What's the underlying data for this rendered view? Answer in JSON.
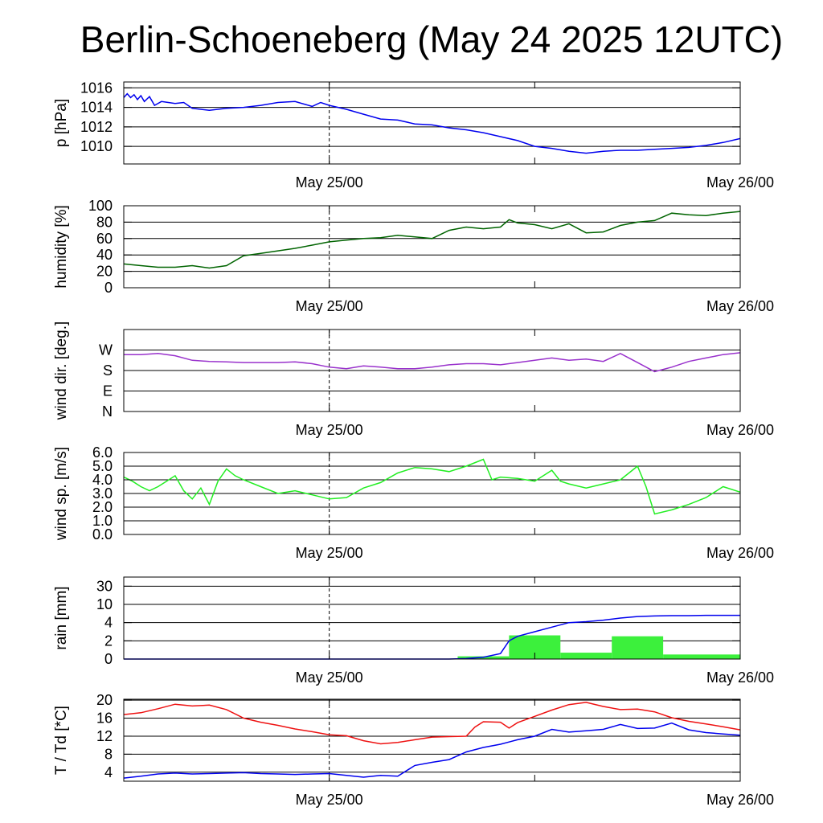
{
  "title": "Berlin-Schoeneberg (May 24 2025 12UTC)",
  "x_ticks": [
    "May 25/00",
    "May 26/00"
  ],
  "chart_data": [
    {
      "type": "line",
      "ylabel": "p [hPa]",
      "yticks": [
        "1010",
        "1012",
        "1014",
        "1016"
      ],
      "ylim": [
        1008.2,
        1016.6
      ],
      "xlim": [
        0,
        36
      ],
      "series": [
        {
          "color": "#0000ee",
          "x": [
            0,
            0.2,
            0.4,
            0.6,
            0.8,
            1.0,
            1.2,
            1.5,
            1.8,
            2.2,
            2.6,
            3,
            3.5,
            4,
            5,
            6,
            7,
            8,
            9,
            10,
            11,
            11.5,
            12,
            13,
            14,
            15,
            16,
            17,
            18,
            19,
            20,
            21,
            22,
            23,
            24,
            25,
            26,
            27,
            28,
            29,
            30,
            31,
            32,
            33,
            34,
            35,
            36
          ],
          "y": [
            1015.0,
            1015.4,
            1015.0,
            1015.3,
            1014.8,
            1015.2,
            1014.6,
            1015.1,
            1014.2,
            1014.6,
            1014.5,
            1014.4,
            1014.5,
            1013.9,
            1013.7,
            1013.9,
            1014.0,
            1014.2,
            1014.5,
            1014.6,
            1014.1,
            1014.5,
            1014.2,
            1013.8,
            1013.3,
            1012.8,
            1012.7,
            1012.3,
            1012.2,
            1011.9,
            1011.7,
            1011.4,
            1011.0,
            1010.6,
            1010.0,
            1009.8,
            1009.5,
            1009.3,
            1009.5,
            1009.6,
            1009.6,
            1009.7,
            1009.8,
            1009.9,
            1010.1,
            1010.4,
            1010.8
          ]
        }
      ]
    },
    {
      "type": "line",
      "ylabel": "humidity [%]",
      "yticks": [
        "0",
        "20",
        "40",
        "60",
        "80",
        "100"
      ],
      "ylim": [
        0,
        100
      ],
      "xlim": [
        0,
        36
      ],
      "series": [
        {
          "color": "#006400",
          "x": [
            0,
            1,
            2,
            3,
            4,
            5,
            6,
            7,
            8,
            9,
            10,
            11,
            12,
            13,
            14,
            15,
            16,
            17,
            18,
            19,
            20,
            21,
            22,
            22.5,
            23,
            24,
            25,
            26,
            27,
            28,
            29,
            30,
            31,
            32,
            33,
            34,
            35,
            36
          ],
          "y": [
            29,
            27,
            25,
            25,
            27,
            24,
            27,
            39,
            42,
            45,
            48,
            52,
            56,
            58,
            60,
            61,
            64,
            62,
            60,
            70,
            74,
            72,
            74,
            83,
            79,
            77,
            72,
            78,
            67,
            68,
            76,
            80,
            82,
            91,
            89,
            88,
            91,
            93
          ]
        }
      ]
    },
    {
      "type": "line",
      "ylabel": "wind dir. [deg.]",
      "yticks": [
        "N",
        "E",
        "S",
        "W"
      ],
      "ylim": [
        0,
        360
      ],
      "xlim": [
        0,
        36
      ],
      "series": [
        {
          "color": "#9932cc",
          "x": [
            0,
            1,
            2,
            3,
            4,
            5,
            6,
            7,
            8,
            9,
            10,
            11,
            12,
            13,
            14,
            15,
            16,
            17,
            18,
            19,
            20,
            21,
            22,
            23,
            24,
            25,
            26,
            27,
            28,
            29,
            30,
            31,
            32,
            33,
            34,
            35,
            36
          ],
          "y": [
            250,
            250,
            255,
            245,
            225,
            220,
            218,
            215,
            215,
            215,
            218,
            210,
            195,
            188,
            200,
            195,
            188,
            188,
            195,
            205,
            210,
            210,
            205,
            215,
            225,
            235,
            225,
            230,
            220,
            255,
            215,
            175,
            195,
            220,
            235,
            250,
            258
          ]
        }
      ]
    },
    {
      "type": "line",
      "ylabel": "wind sp. [m/s]",
      "yticks": [
        "0.0",
        "1.0",
        "2.0",
        "3.0",
        "4.0",
        "5.0",
        "6.0"
      ],
      "ylim": [
        0,
        6
      ],
      "xlim": [
        0,
        36
      ],
      "series": [
        {
          "color": "#22ee22",
          "x": [
            0,
            0.5,
            1,
            1.5,
            2,
            2.5,
            3,
            3.5,
            4,
            4.5,
            5,
            5.5,
            6,
            6.5,
            7,
            8,
            9,
            10,
            11,
            12,
            13,
            14,
            15,
            16,
            17,
            18,
            19,
            20,
            21,
            21.5,
            22,
            23,
            24,
            25,
            25.5,
            26,
            27,
            28,
            29,
            30,
            30.5,
            31,
            32,
            33,
            34,
            35,
            36
          ],
          "y": [
            4.2,
            3.9,
            3.5,
            3.2,
            3.5,
            3.9,
            4.3,
            3.2,
            2.6,
            3.4,
            2.2,
            3.9,
            4.8,
            4.3,
            4.0,
            3.5,
            3.0,
            3.2,
            2.9,
            2.6,
            2.7,
            3.4,
            3.8,
            4.5,
            4.9,
            4.8,
            4.6,
            5.0,
            5.5,
            4.0,
            4.2,
            4.1,
            3.9,
            4.7,
            3.9,
            3.7,
            3.4,
            3.7,
            4.0,
            5.0,
            3.5,
            1.5,
            1.8,
            2.2,
            2.7,
            3.5,
            3.1
          ]
        }
      ]
    },
    {
      "type": "bar+line",
      "ylabel": "rain [mm]",
      "yticks": [
        "0",
        "2",
        "4",
        "10",
        "30"
      ],
      "ytick_values": [
        0,
        2,
        4,
        10,
        30
      ],
      "xlim": [
        0,
        36
      ],
      "bar_color": "#3cf03c",
      "bars": [
        {
          "x0": 19.5,
          "x1": 22.5,
          "value": 0.3
        },
        {
          "x0": 22.5,
          "x1": 25.5,
          "value": 2.6
        },
        {
          "x0": 25.5,
          "x1": 28.5,
          "value": 0.7
        },
        {
          "x0": 28.5,
          "x1": 31.5,
          "value": 2.5
        },
        {
          "x0": 31.5,
          "x1": 36,
          "value": 0.5
        }
      ],
      "series": [
        {
          "color": "#0000ee",
          "x": [
            0,
            19,
            20,
            21,
            22,
            22.5,
            23,
            24,
            25,
            26,
            27,
            28,
            29,
            30,
            31,
            32,
            33,
            34,
            35,
            36
          ],
          "y": [
            0,
            0,
            0.05,
            0.2,
            0.6,
            2.0,
            2.5,
            3.0,
            3.5,
            4.0,
            4.3,
            4.8,
            5.5,
            6.0,
            6.2,
            6.3,
            6.3,
            6.4,
            6.4,
            6.4
          ]
        }
      ]
    },
    {
      "type": "line",
      "ylabel": "T / Td [*C]",
      "yticks": [
        "4",
        "8",
        "12",
        "16",
        "20"
      ],
      "ylim": [
        2.0,
        20.2
      ],
      "xlim": [
        0,
        36
      ],
      "series": [
        {
          "color": "#ee1111",
          "x": [
            0,
            1,
            2,
            3,
            4,
            5,
            6,
            7,
            8,
            9,
            10,
            11,
            12,
            13,
            14,
            15,
            16,
            17,
            18,
            19,
            20,
            20.5,
            21,
            22,
            22.5,
            23,
            24,
            25,
            26,
            27,
            28,
            29,
            30,
            31,
            32,
            33,
            34,
            35,
            36
          ],
          "y": [
            16.8,
            17.2,
            18.1,
            19.1,
            18.7,
            18.9,
            17.9,
            16.0,
            15.1,
            14.4,
            13.6,
            13.0,
            12.3,
            12.1,
            11.0,
            10.3,
            10.6,
            11.2,
            11.8,
            11.9,
            12.0,
            14.0,
            15.2,
            15.1,
            13.8,
            15.0,
            16.4,
            17.8,
            19.0,
            19.5,
            18.6,
            17.9,
            18.0,
            17.4,
            16.1,
            15.3,
            14.7,
            14.1,
            13.4
          ]
        },
        {
          "color": "#0000ee",
          "x": [
            0,
            1,
            2,
            3,
            4,
            5,
            6,
            7,
            8,
            9,
            10,
            11,
            12,
            13,
            14,
            15,
            16,
            17,
            18,
            19,
            20,
            21,
            22,
            23,
            24,
            25,
            26,
            27,
            28,
            29,
            30,
            31,
            32,
            33,
            34,
            35,
            36
          ],
          "y": [
            2.7,
            3.1,
            3.6,
            3.8,
            3.6,
            3.7,
            3.8,
            3.9,
            3.7,
            3.6,
            3.5,
            3.6,
            3.7,
            3.3,
            2.9,
            3.3,
            3.1,
            5.5,
            6.2,
            6.8,
            8.5,
            9.5,
            10.2,
            11.2,
            12.0,
            13.5,
            12.9,
            13.2,
            13.5,
            14.6,
            13.7,
            13.8,
            14.9,
            13.4,
            12.8,
            12.5,
            12.2
          ]
        }
      ]
    }
  ]
}
